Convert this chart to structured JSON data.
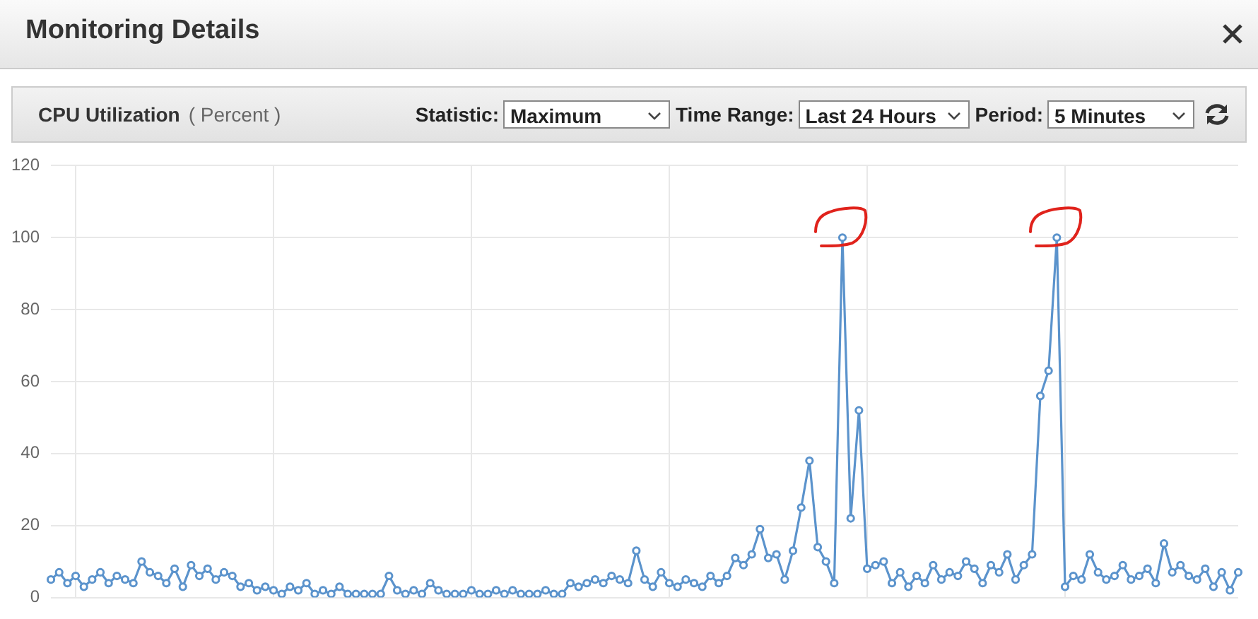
{
  "chart_data": {
    "type": "line",
    "title": "Monitoring Details",
    "subtitle": "CPU Utilization",
    "ylabel": "( Percent )",
    "annotations": [
      "Statistic:",
      "Maximum",
      "Time Range:",
      "Last 24 Hours",
      "Period:",
      "5 Minutes"
    ],
    "categories": [
      null,
      null,
      null,
      null,
      null,
      null,
      null,
      null,
      null,
      null,
      null,
      null,
      null,
      null,
      null,
      null,
      null,
      null,
      null,
      null,
      null,
      null,
      null,
      null,
      null,
      null,
      null,
      null,
      null,
      null,
      null,
      null,
      null,
      null,
      null,
      null,
      null,
      null,
      null,
      null,
      null,
      null,
      null,
      null,
      null,
      null,
      null,
      null,
      null,
      null,
      null,
      null,
      null,
      null,
      null,
      null,
      null,
      null,
      null,
      null,
      null,
      null,
      null,
      null,
      null,
      null,
      null,
      null,
      null,
      null,
      null,
      null,
      null,
      null,
      null,
      null,
      null,
      null,
      null,
      null,
      null,
      null,
      null,
      null,
      null,
      null,
      null,
      null,
      null,
      null,
      null,
      null,
      null,
      null,
      null,
      null,
      null,
      null,
      null,
      null,
      null,
      null,
      null,
      null,
      null,
      null,
      null,
      null,
      null,
      null,
      null,
      null,
      null,
      null,
      null,
      null,
      null,
      null,
      null,
      null,
      null,
      null,
      null,
      null,
      null,
      null,
      null,
      null,
      null,
      null,
      null,
      null,
      null,
      null,
      null,
      null,
      null,
      null,
      null,
      null,
      null,
      null,
      null,
      null,
      null
    ],
    "series": [
      {
        "color": "#5b93cc",
        "values": [
          5,
          7,
          4,
          6,
          3,
          5,
          7,
          4,
          6,
          5,
          4,
          10,
          7,
          6,
          4,
          8,
          3,
          9,
          6,
          8,
          5,
          7,
          6,
          3,
          4,
          2,
          3,
          2,
          1,
          3,
          2,
          4,
          1,
          2,
          1,
          3,
          1,
          1,
          1,
          1,
          1,
          6,
          2,
          1,
          2,
          1,
          4,
          2,
          1,
          1,
          1,
          2,
          1,
          1,
          2,
          1,
          2,
          1,
          1,
          1,
          2,
          1,
          1,
          4,
          3,
          4,
          5,
          4,
          6,
          5,
          4,
          13,
          5,
          3,
          7,
          4,
          3,
          5,
          4,
          3,
          6,
          4,
          6,
          11,
          9,
          12,
          19,
          11,
          12,
          5,
          13,
          25,
          38,
          14,
          10,
          4,
          100,
          22,
          52,
          8,
          9,
          10,
          4,
          7,
          3,
          6,
          4,
          9,
          5,
          7,
          6,
          10,
          8,
          4,
          9,
          7,
          12,
          5,
          9,
          12,
          56,
          63,
          100,
          3,
          6,
          5,
          12,
          7,
          5,
          6,
          9,
          5,
          6,
          8,
          4,
          15,
          7,
          9,
          6,
          5,
          8,
          3,
          7,
          2,
          7
        ]
      }
    ],
    "ylim": [
      0,
      120
    ],
    "yticks": [
      0,
      20,
      40,
      60,
      80,
      100,
      120
    ],
    "grid": true,
    "tick_labels": "y",
    "marker": "circle",
    "line_style": "solid"
  }
}
